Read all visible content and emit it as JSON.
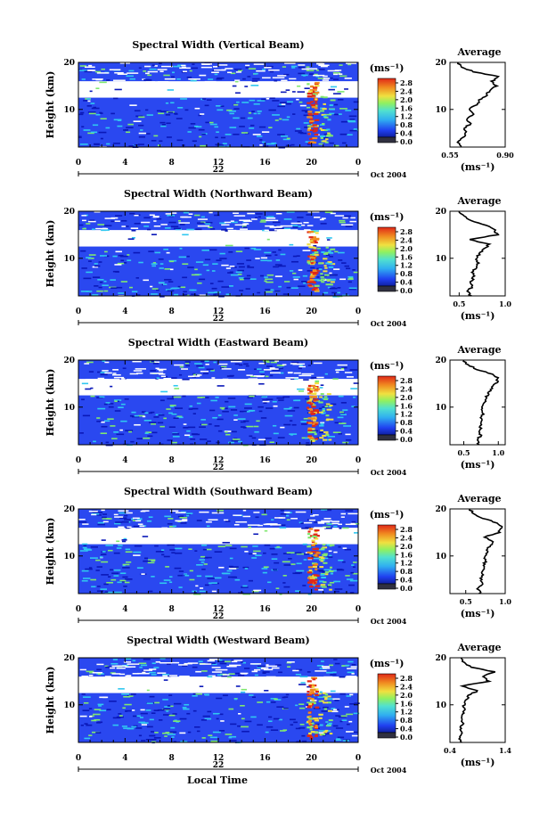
{
  "figure": {
    "local_time_label": "Local Time",
    "date_label": "Oct 2004",
    "day_label": "22",
    "colorbar_unit": "(ms⁻¹)",
    "colorbar_ticks": [
      "2.8",
      "2.4",
      "2.0",
      "1.6",
      "1.2",
      "0.8",
      "0.4",
      "0.0"
    ],
    "colors": {
      "background_blue": "#2a48f0",
      "deep_blue": "#0a18b8",
      "cyan": "#30c8f0",
      "green": "#80e870",
      "yellow": "#f0e040",
      "orange": "#f08a20",
      "red": "#e02818"
    }
  },
  "chart_data": [
    {
      "type": "heatmap",
      "title": "Spectral Width (Vertical Beam)",
      "ylabel": "Height (km)",
      "xlabel": "",
      "x_ticks": [
        "0",
        "4",
        "8",
        "12",
        "16",
        "20",
        "0"
      ],
      "xlim": [
        0,
        24
      ],
      "y_ticks": [
        "20",
        "10"
      ],
      "ylim": [
        2,
        20
      ],
      "colorbar_range": [
        0.0,
        2.8
      ],
      "average_profile": {
        "title": "Average",
        "xlabel": "(ms⁻¹)",
        "x_ticks": [
          "0.55",
          "0.90"
        ],
        "xlim": [
          0.55,
          0.9
        ],
        "y_ticks": [
          "20",
          "10"
        ],
        "height_km": [
          2,
          3,
          4,
          5,
          6,
          7,
          8,
          9,
          10,
          11,
          12,
          13,
          14,
          15,
          16,
          17,
          18,
          19,
          20
        ],
        "width_ms": [
          0.62,
          0.6,
          0.63,
          0.65,
          0.64,
          0.68,
          0.66,
          0.7,
          0.67,
          0.72,
          0.74,
          0.78,
          0.8,
          0.84,
          0.82,
          0.86,
          0.7,
          0.62,
          0.6
        ]
      }
    },
    {
      "type": "heatmap",
      "title": "Spectral Width (Northward Beam)",
      "ylabel": "Height (km)",
      "xlabel": "",
      "x_ticks": [
        "0",
        "4",
        "8",
        "12",
        "16",
        "20",
        "0"
      ],
      "xlim": [
        0,
        24
      ],
      "y_ticks": [
        "20",
        "10"
      ],
      "ylim": [
        2,
        20
      ],
      "colorbar_range": [
        0.0,
        2.8
      ],
      "average_profile": {
        "title": "Average",
        "xlabel": "(ms⁻¹)",
        "x_ticks": [
          "0.5",
          "1.0"
        ],
        "xlim": [
          0.4,
          1.0
        ],
        "y_ticks": [
          "20",
          "10"
        ],
        "height_km": [
          2,
          3,
          4,
          5,
          6,
          7,
          8,
          9,
          10,
          11,
          12,
          13,
          14,
          15,
          16,
          17,
          18,
          19,
          20
        ],
        "width_ms": [
          0.62,
          0.6,
          0.64,
          0.63,
          0.66,
          0.65,
          0.68,
          0.7,
          0.69,
          0.72,
          0.78,
          0.82,
          0.6,
          0.92,
          0.88,
          0.8,
          0.62,
          0.55,
          0.5
        ]
      }
    },
    {
      "type": "heatmap",
      "title": "Spectral Width (Eastward Beam)",
      "ylabel": "Height (km)",
      "xlabel": "",
      "x_ticks": [
        "0",
        "4",
        "8",
        "12",
        "16",
        "20",
        "0"
      ],
      "xlim": [
        0,
        24
      ],
      "y_ticks": [
        "20",
        "10"
      ],
      "ylim": [
        2,
        20
      ],
      "colorbar_range": [
        0.0,
        2.8
      ],
      "average_profile": {
        "title": "Average",
        "xlabel": "(ms⁻¹)",
        "x_ticks": [
          "0.5",
          "1.0"
        ],
        "xlim": [
          0.3,
          1.1
        ],
        "y_ticks": [
          "20",
          "10"
        ],
        "height_km": [
          2,
          3,
          4,
          5,
          6,
          7,
          8,
          9,
          10,
          11,
          12,
          13,
          14,
          15,
          16,
          17,
          18,
          19,
          20
        ],
        "width_ms": [
          0.72,
          0.7,
          0.74,
          0.73,
          0.75,
          0.74,
          0.76,
          0.78,
          0.77,
          0.8,
          0.82,
          0.86,
          0.9,
          0.96,
          1.0,
          0.92,
          0.7,
          0.55,
          0.5
        ]
      }
    },
    {
      "type": "heatmap",
      "title": "Spectral Width (Southward Beam)",
      "ylabel": "Height (km)",
      "xlabel": "",
      "x_ticks": [
        "0",
        "4",
        "8",
        "12",
        "16",
        "20",
        "0"
      ],
      "xlim": [
        0,
        24
      ],
      "y_ticks": [
        "20",
        "10"
      ],
      "ylim": [
        2,
        20
      ],
      "colorbar_range": [
        0.0,
        2.8
      ],
      "average_profile": {
        "title": "Average",
        "xlabel": "(ms⁻¹)",
        "x_ticks": [
          "0.5",
          "1.0"
        ],
        "xlim": [
          0.3,
          1.0
        ],
        "y_ticks": [
          "20",
          "10"
        ],
        "height_km": [
          2,
          3,
          4,
          5,
          6,
          7,
          8,
          9,
          10,
          11,
          12,
          13,
          14,
          15,
          16,
          17,
          18,
          19,
          20
        ],
        "width_ms": [
          0.68,
          0.66,
          0.7,
          0.69,
          0.71,
          0.72,
          0.73,
          0.75,
          0.74,
          0.77,
          0.8,
          0.84,
          0.74,
          0.92,
          0.96,
          0.9,
          0.72,
          0.6,
          0.55
        ]
      }
    },
    {
      "type": "heatmap",
      "title": "Spectral Width (Westward Beam)",
      "ylabel": "Height (km)",
      "xlabel": "Local Time",
      "x_ticks": [
        "0",
        "4",
        "8",
        "12",
        "16",
        "20",
        "0"
      ],
      "xlim": [
        0,
        24
      ],
      "y_ticks": [
        "20",
        "10"
      ],
      "ylim": [
        2,
        20
      ],
      "colorbar_range": [
        0.0,
        2.8
      ],
      "average_profile": {
        "title": "Average",
        "xlabel": "(ms⁻¹)",
        "x_ticks": [
          "0.4",
          "1.4"
        ],
        "xlim": [
          0.4,
          1.4
        ],
        "y_ticks": [
          "20",
          "10"
        ],
        "height_km": [
          2,
          3,
          4,
          5,
          6,
          7,
          8,
          9,
          10,
          11,
          12,
          13,
          14,
          15,
          16,
          17,
          18,
          19,
          20
        ],
        "width_ms": [
          0.6,
          0.58,
          0.62,
          0.6,
          0.63,
          0.62,
          0.64,
          0.66,
          0.65,
          0.7,
          0.74,
          0.9,
          0.62,
          1.1,
          1.0,
          1.2,
          0.8,
          0.65,
          0.6
        ]
      }
    }
  ]
}
